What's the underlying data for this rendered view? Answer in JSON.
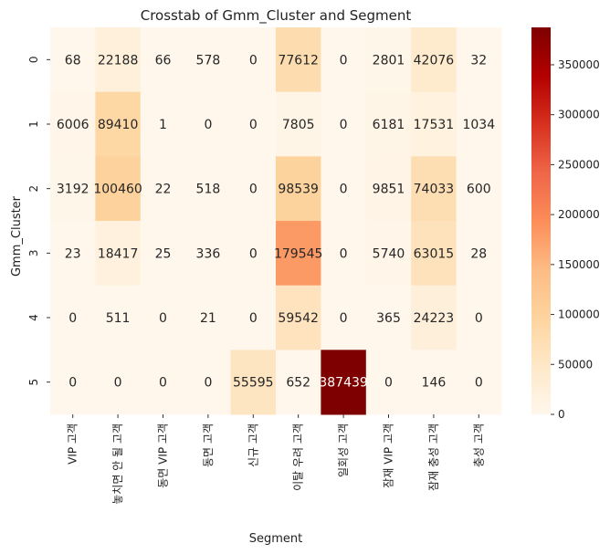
{
  "chart_data": {
    "type": "heatmap",
    "title": "Crosstab of Gmm_Cluster and Segment",
    "xlabel": "Segment",
    "ylabel": "Gmm_Cluster",
    "x_categories": [
      "VIP 고객",
      "놓치면 안 될 고객",
      "동면 VIP 고객",
      "동면 고객",
      "신규 고객",
      "이탈 우려 고객",
      "일회성 고객",
      "잠재 VIP 고객",
      "잠재 충성 고객",
      "충성 고객"
    ],
    "y_categories": [
      "0",
      "1",
      "2",
      "3",
      "4",
      "5"
    ],
    "values": [
      [
        68,
        22188,
        66,
        578,
        0,
        77612,
        0,
        2801,
        42076,
        32
      ],
      [
        6006,
        89410,
        1,
        0,
        0,
        7805,
        0,
        6181,
        17531,
        1034
      ],
      [
        3192,
        100460,
        22,
        518,
        0,
        98539,
        0,
        9851,
        74033,
        600
      ],
      [
        23,
        18417,
        25,
        336,
        0,
        179545,
        0,
        5740,
        63015,
        28
      ],
      [
        0,
        511,
        0,
        21,
        0,
        59542,
        0,
        365,
        24223,
        0
      ],
      [
        0,
        0,
        0,
        0,
        55595,
        652,
        387439,
        0,
        146,
        0
      ]
    ],
    "colormap": "OrRd",
    "vmin": 0,
    "vmax": 387439,
    "colorbar_ticks": [
      0,
      50000,
      100000,
      150000,
      200000,
      250000,
      300000,
      350000
    ],
    "annotations": true
  }
}
